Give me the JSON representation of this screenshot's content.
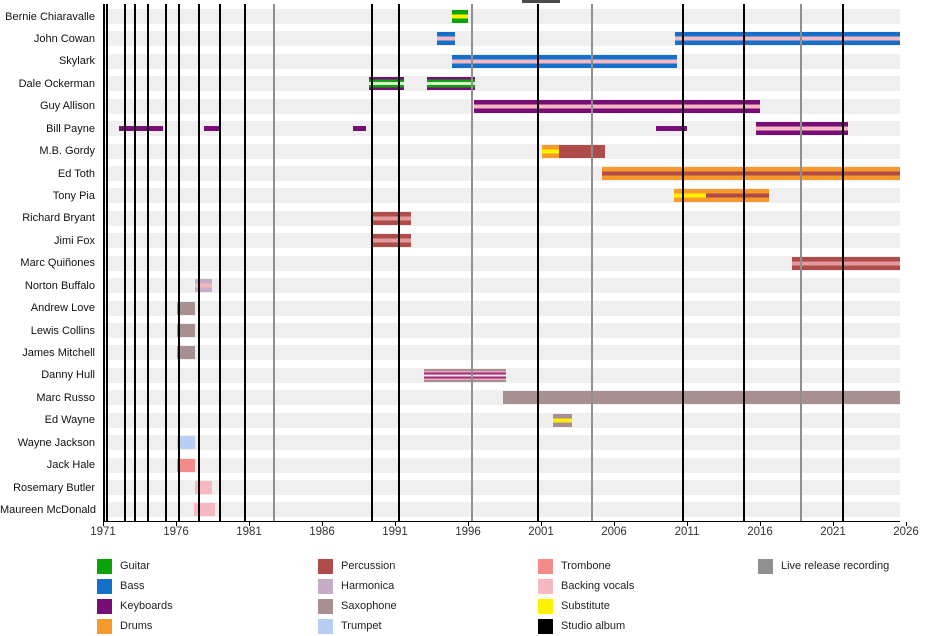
{
  "chart_data": {
    "type": "bar",
    "variant": "member-timeline-gantt",
    "x_range": [
      1971,
      2025.7
    ],
    "axis_tick_years": [
      1971,
      1976,
      1981,
      1986,
      1991,
      1996,
      2001,
      2006,
      2011,
      2016,
      2021,
      2026
    ],
    "grid": "off",
    "legend_position": "bottom",
    "role_colors": {
      "guitar": "#0AA30A",
      "bass": "#1570CC",
      "keyboards": "#780D78",
      "drums": "#F8992B",
      "percussion": "#AF4C4A",
      "harmonica": "#C7ACC7",
      "saxophone": "#A89090",
      "trumpet": "#B9CEF3",
      "trombone": "#F48A8A",
      "backing_vocals": "#F6B8C1",
      "substitute": "#FFF200",
      "studio_album": "#000000",
      "live_release": "#8F8F8F"
    },
    "members": [
      {
        "name": "Bernie Chiaravalle",
        "bars": [
          {
            "from": 1994.9,
            "to": 1996.0,
            "stripes": [
              "guitar",
              "substitute"
            ]
          }
        ]
      },
      {
        "name": "John Cowan",
        "bars": [
          {
            "from": 1993.9,
            "to": 1995.1,
            "stripes": [
              "bass",
              "backing_vocals"
            ]
          },
          {
            "from": 2010.2,
            "to": 2025.7,
            "stripes": [
              "bass",
              "backing_vocals"
            ]
          }
        ]
      },
      {
        "name": "Skylark",
        "bars": [
          {
            "from": 1994.9,
            "to": 2010.3,
            "stripes": [
              "bass",
              "backing_vocals"
            ]
          }
        ]
      },
      {
        "name": "Dale Ockerman",
        "bars": [
          {
            "from": 1989.2,
            "to": 1991.6,
            "stripes": [
              "keyboards",
              "guitar",
              "#D9EFC9"
            ]
          },
          {
            "from": 1993.2,
            "to": 1996.5,
            "stripes": [
              "keyboards",
              "guitar",
              "#D9EFC9"
            ]
          }
        ]
      },
      {
        "name": "Guy Allison",
        "bars": [
          {
            "from": 1996.4,
            "to": 2016.0,
            "stripes": [
              "keyboards",
              "backing_vocals"
            ]
          }
        ]
      },
      {
        "name": "Bill Payne",
        "bars": [
          {
            "from": 1972.1,
            "to": 1975.1,
            "stripes": [
              "keyboards"
            ],
            "thin": true
          },
          {
            "from": 1977.9,
            "to": 1979.0,
            "stripes": [
              "keyboards"
            ],
            "thin": true
          },
          {
            "from": 1988.1,
            "to": 1989.0,
            "stripes": [
              "keyboards"
            ],
            "thin": true
          },
          {
            "from": 2008.9,
            "to": 2011.0,
            "stripes": [
              "keyboards"
            ],
            "thin": true
          },
          {
            "from": 2015.7,
            "to": 2022.0,
            "stripes": [
              "keyboards",
              "backing_vocals"
            ]
          }
        ]
      },
      {
        "name": "M.B. Gordy",
        "bars": [
          {
            "from": 2001.1,
            "to": 2002.2,
            "stripes": [
              "drums",
              "substitute"
            ]
          },
          {
            "from": 2002.2,
            "to": 2005.4,
            "stripes": [
              "percussion"
            ]
          }
        ]
      },
      {
        "name": "Ed Toth",
        "bars": [
          {
            "from": 2005.2,
            "to": 2025.7,
            "stripes": [
              "drums",
              "percussion"
            ]
          }
        ]
      },
      {
        "name": "Tony Pia",
        "bars": [
          {
            "from": 2010.1,
            "to": 2012.3,
            "stripes": [
              "drums",
              "substitute"
            ]
          },
          {
            "from": 2012.3,
            "to": 2016.6,
            "stripes": [
              "drums",
              "percussion"
            ]
          }
        ]
      },
      {
        "name": "Richard Bryant",
        "bars": [
          {
            "from": 1989.5,
            "to": 1992.1,
            "stripes": [
              "percussion",
              "#E39A9A"
            ]
          }
        ]
      },
      {
        "name": "Jimi Fox",
        "bars": [
          {
            "from": 1989.5,
            "to": 1992.1,
            "stripes": [
              "percussion",
              "#E39A9A"
            ]
          }
        ]
      },
      {
        "name": "Marc Quiñones",
        "bars": [
          {
            "from": 2018.2,
            "to": 2025.7,
            "stripes": [
              "percussion",
              "#E39A9A"
            ]
          }
        ]
      },
      {
        "name": "Norton Buffalo",
        "bars": [
          {
            "from": 1977.3,
            "to": 1978.5,
            "stripes": [
              "harmonica",
              "backing_vocals"
            ]
          }
        ]
      },
      {
        "name": "Andrew Love",
        "bars": [
          {
            "from": 1976.1,
            "to": 1977.3,
            "stripes": [
              "saxophone"
            ]
          }
        ]
      },
      {
        "name": "Lewis Collins",
        "bars": [
          {
            "from": 1976.1,
            "to": 1977.3,
            "stripes": [
              "saxophone"
            ]
          }
        ]
      },
      {
        "name": "James Mitchell",
        "bars": [
          {
            "from": 1976.1,
            "to": 1977.3,
            "stripes": [
              "saxophone"
            ]
          }
        ]
      },
      {
        "name": "Danny Hull",
        "bars": [
          {
            "from": 1993.0,
            "to": 1998.6,
            "stripes": [
              "saxophone",
              "#F2A7C0",
              "#9A3077",
              "#F8DCE4"
            ]
          }
        ]
      },
      {
        "name": "Marc Russo",
        "bars": [
          {
            "from": 1998.4,
            "to": 2025.7,
            "stripes": [
              "saxophone"
            ]
          }
        ]
      },
      {
        "name": "Ed Wayne",
        "bars": [
          {
            "from": 2001.8,
            "to": 2003.1,
            "stripes": [
              "saxophone",
              "substitute"
            ]
          }
        ]
      },
      {
        "name": "Wayne Jackson",
        "bars": [
          {
            "from": 1976.1,
            "to": 1977.3,
            "stripes": [
              "trumpet"
            ]
          }
        ]
      },
      {
        "name": "Jack Hale",
        "bars": [
          {
            "from": 1976.1,
            "to": 1977.3,
            "stripes": [
              "trombone"
            ]
          }
        ]
      },
      {
        "name": "Rosemary Butler",
        "bars": [
          {
            "from": 1977.3,
            "to": 1978.5,
            "stripes": [
              "backing_vocals"
            ]
          }
        ]
      },
      {
        "name": "Maureen McDonald",
        "bars": [
          {
            "from": 1977.2,
            "to": 1978.7,
            "stripes": [
              "backing_vocals"
            ]
          }
        ]
      }
    ],
    "events": {
      "studio_album_years": [
        1971.3,
        1972.5,
        1973.2,
        1974.1,
        1975.3,
        1976.2,
        1977.6,
        1979.0,
        1980.7,
        1989.4,
        1991.3,
        2000.8,
        2010.7,
        2014.9,
        2021.7
      ],
      "live_release_years": [
        1982.7,
        1996.3,
        2004.5,
        2018.8
      ]
    },
    "legend_columns": [
      [
        {
          "label": "Guitar",
          "color": "guitar"
        },
        {
          "label": "Bass",
          "color": "bass"
        },
        {
          "label": "Keyboards",
          "color": "keyboards"
        },
        {
          "label": "Drums",
          "color": "drums"
        }
      ],
      [
        {
          "label": "Percussion",
          "color": "percussion"
        },
        {
          "label": "Harmonica",
          "color": "harmonica"
        },
        {
          "label": "Saxophone",
          "color": "saxophone"
        },
        {
          "label": "Trumpet",
          "color": "trumpet"
        }
      ],
      [
        {
          "label": "Trombone",
          "color": "trombone"
        },
        {
          "label": "Backing vocals",
          "color": "backing_vocals"
        },
        {
          "label": "Substitute",
          "color": "substitute"
        },
        {
          "label": "Studio album",
          "color": "studio_album"
        }
      ],
      [
        {
          "label": "Live release recording",
          "color": "live_release"
        }
      ]
    ]
  }
}
